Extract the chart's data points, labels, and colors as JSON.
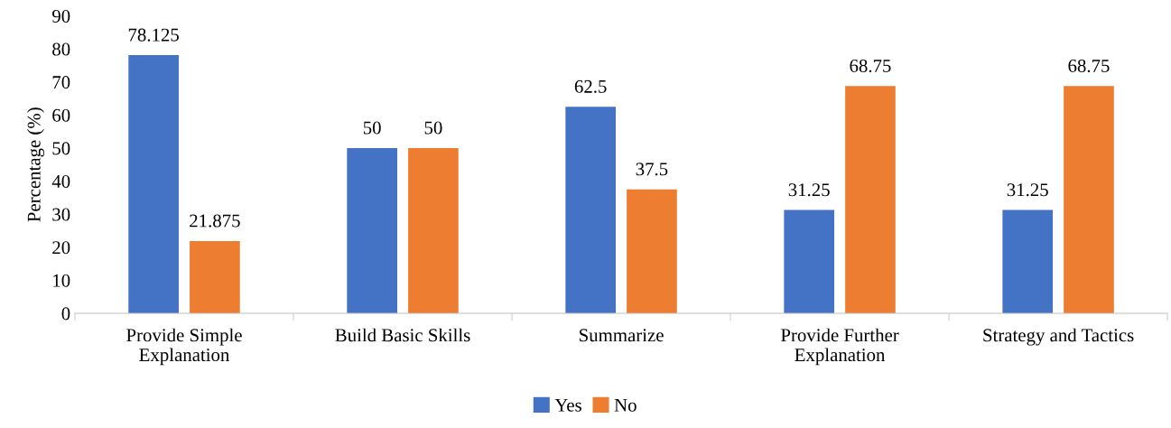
{
  "chart_data": {
    "type": "bar",
    "ylabel": "Percentage (%)",
    "categories": [
      "Provide Simple\nExplanation",
      "Build Basic Skills",
      "Summarize",
      "Provide Further\nExplanation",
      "Strategy and Tactics"
    ],
    "series": [
      {
        "name": "Yes",
        "color": "#4472c4",
        "values": [
          78.125,
          50,
          62.5,
          31.25,
          31.25
        ]
      },
      {
        "name": "No",
        "color": "#ed7d31",
        "values": [
          21.875,
          50,
          37.5,
          68.75,
          68.75
        ]
      }
    ],
    "ylim": [
      0,
      90
    ],
    "yticks": [
      0,
      10,
      20,
      30,
      40,
      50,
      60,
      70,
      80,
      90
    ],
    "data_labels": true,
    "legend": "bottom",
    "grid": false
  }
}
